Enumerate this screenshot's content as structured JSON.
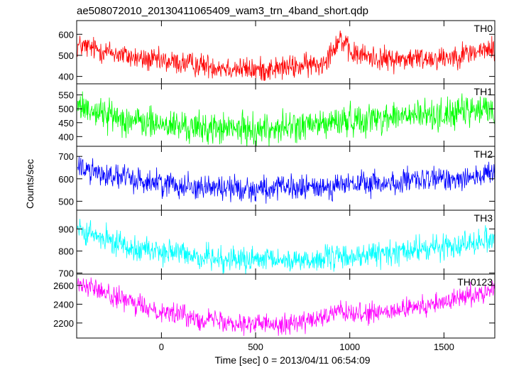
{
  "chart_data": {
    "type": "line",
    "title": "ae508072010_20130411065409_wam3_trn_4band_short.qdp",
    "xlabel": "Time [sec] 0 = 2013/04/11 06:54:09",
    "ylabel": "Counts/sec",
    "xlim": [
      -450,
      1770
    ],
    "x_ticks": [
      0,
      500,
      1000,
      1500
    ],
    "x_tick_labels": [
      "0",
      "500",
      "1000",
      "1500"
    ],
    "grid": false,
    "panels": [
      {
        "name": "TH0",
        "color": "#ff0000",
        "ylim": [
          365,
          665
        ],
        "y_ticks": [
          400,
          500,
          600
        ],
        "y_tick_labels": [
          "400",
          "500",
          "600"
        ],
        "noise": 28,
        "x": [
          -430,
          -300,
          -100,
          200,
          500,
          700,
          850,
          900,
          950,
          1000,
          1200,
          1500,
          1760
        ],
        "y": [
          545,
          520,
          480,
          455,
          430,
          445,
          460,
          520,
          585,
          510,
          480,
          490,
          530
        ]
      },
      {
        "name": "TH1",
        "color": "#00ff00",
        "ylim": [
          365,
          590
        ],
        "y_ticks": [
          400,
          450,
          500,
          550
        ],
        "y_tick_labels": [
          "400",
          "450",
          "500",
          "550"
        ],
        "noise": 28,
        "x": [
          -430,
          -300,
          -100,
          200,
          500,
          800,
          1000,
          1200,
          1500,
          1760
        ],
        "y": [
          510,
          480,
          450,
          430,
          425,
          440,
          460,
          470,
          480,
          500
        ]
      },
      {
        "name": "TH2",
        "color": "#0000ff",
        "ylim": [
          460,
          745
        ],
        "y_ticks": [
          500,
          600,
          700
        ],
        "y_tick_labels": [
          "500",
          "600",
          "700"
        ],
        "noise": 28,
        "x": [
          -430,
          -300,
          -100,
          200,
          500,
          800,
          1000,
          1200,
          1500,
          1760
        ],
        "y": [
          650,
          620,
          590,
          565,
          555,
          560,
          575,
          580,
          600,
          620
        ]
      },
      {
        "name": "TH3",
        "color": "#00ffff",
        "ylim": [
          695,
          985
        ],
        "y_ticks": [
          700,
          800,
          900
        ],
        "y_tick_labels": [
          "700",
          "800",
          "900"
        ],
        "noise": 28,
        "x": [
          -430,
          -300,
          -100,
          200,
          500,
          800,
          1000,
          1200,
          1500,
          1760
        ],
        "y": [
          890,
          850,
          810,
          775,
          755,
          760,
          775,
          790,
          820,
          860
        ]
      },
      {
        "name": "TH0123",
        "color": "#ff00ff",
        "ylim": [
          2040,
          2720
        ],
        "y_ticks": [
          2200,
          2400,
          2600
        ],
        "y_tick_labels": [
          "2200",
          "2400",
          "2600"
        ],
        "noise": 55,
        "x": [
          -430,
          -300,
          -100,
          200,
          500,
          700,
          850,
          900,
          950,
          1000,
          1200,
          1500,
          1760
        ],
        "y": [
          2620,
          2520,
          2370,
          2250,
          2190,
          2200,
          2240,
          2290,
          2340,
          2280,
          2310,
          2420,
          2560
        ]
      }
    ]
  }
}
